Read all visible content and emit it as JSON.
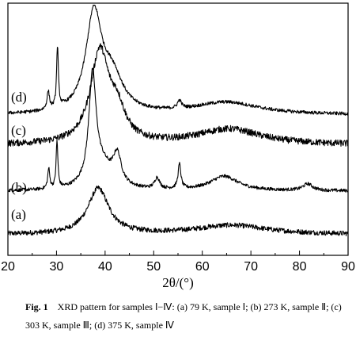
{
  "chart_data": {
    "type": "line",
    "xlabel": "2θ/(°)",
    "ylabel": "",
    "xlim": [
      20,
      90
    ],
    "xticks": [
      "20",
      "30",
      "40",
      "50",
      "60",
      "70",
      "80",
      "90"
    ],
    "grid": false,
    "series": [
      {
        "name": "(a)",
        "peaks": [
          {
            "x": 38.6,
            "height": 0.55,
            "width": 2.6
          },
          {
            "x": 66,
            "height": 0.11,
            "width": 9
          }
        ],
        "baseline": 0.02,
        "noise": 0.06
      },
      {
        "name": "(b)",
        "peaks": [
          {
            "x": 28.4,
            "height": 0.18,
            "width": 0.25
          },
          {
            "x": 30.1,
            "height": 0.42,
            "width": 0.22
          },
          {
            "x": 37.4,
            "height": 0.95,
            "width": 0.9
          },
          {
            "x": 39.3,
            "height": 0.2,
            "width": 2.8
          },
          {
            "x": 42.5,
            "height": 0.26,
            "width": 1.0
          },
          {
            "x": 50.7,
            "height": 0.1,
            "width": 0.6
          },
          {
            "x": 55.3,
            "height": 0.22,
            "width": 0.35
          },
          {
            "x": 64.5,
            "height": 0.13,
            "width": 3.5
          },
          {
            "x": 81.7,
            "height": 0.06,
            "width": 1.2
          }
        ],
        "baseline": 0.05,
        "noise": 0.03
      },
      {
        "name": "(c)",
        "peaks": [
          {
            "x": 38.9,
            "height": 0.82,
            "width": 2.3
          },
          {
            "x": 42.5,
            "height": 0.25,
            "width": 2.0
          },
          {
            "x": 65.5,
            "height": 0.14,
            "width": 8
          }
        ],
        "baseline": 0.05,
        "noise": 0.06
      },
      {
        "name": "(d)",
        "peaks": [
          {
            "x": 28.3,
            "height": 0.16,
            "width": 0.3
          },
          {
            "x": 30.2,
            "height": 0.55,
            "width": 0.22
          },
          {
            "x": 37.7,
            "height": 0.88,
            "width": 2.0
          },
          {
            "x": 41.5,
            "height": 0.3,
            "width": 2.6
          },
          {
            "x": 55.3,
            "height": 0.07,
            "width": 0.5
          },
          {
            "x": 65,
            "height": 0.11,
            "width": 8
          }
        ],
        "baseline": 0.05,
        "noise": 0.03
      }
    ]
  },
  "caption": {
    "label": "Fig. 1",
    "text": "XRD pattern for samples Ⅰ−Ⅳ: (a) 79 K, sample Ⅰ; (b) 273 K, sample Ⅱ; (c) 303 K, sample Ⅲ; (d) 375 K, sample Ⅳ"
  }
}
